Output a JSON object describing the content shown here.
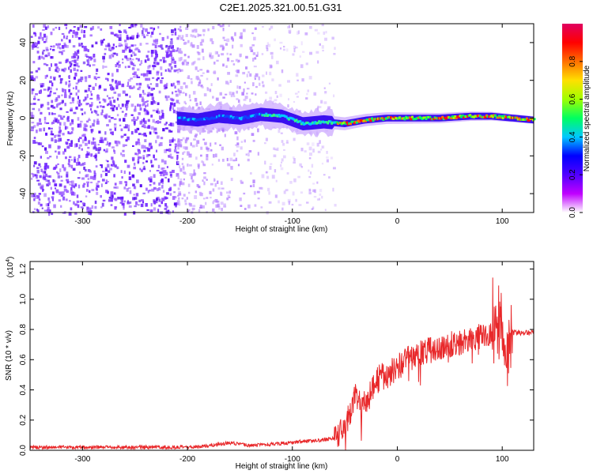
{
  "title": "C2E1.2025.321.00.51.G31",
  "chart_data": [
    {
      "type": "heatmap",
      "title": "C2E1.2025.321.00.51.G31",
      "xlabel": "Height of straight line (km)",
      "ylabel": "Frequency (Hz)",
      "xlim": [
        -350,
        130
      ],
      "ylim": [
        -50,
        50
      ],
      "xticks": [
        -300,
        -200,
        -100,
        0,
        100
      ],
      "xtick_labels": [
        "-300",
        "-200",
        "-100",
        "0",
        "100"
      ],
      "yticks": [
        -40,
        -20,
        0,
        20,
        40
      ],
      "ytick_labels": [
        "-40",
        "-20",
        "0",
        "20",
        "40"
      ],
      "colorbar": {
        "label": "Normalized spectral amplitude",
        "range": [
          0,
          1
        ],
        "ticks": [
          0,
          0.2,
          0.4,
          0.6,
          0.8
        ],
        "tick_labels": [
          "0.0",
          "0.2",
          "0.4",
          "0.6",
          "0.8"
        ],
        "colors": [
          "#ffffff",
          "#c000ff",
          "#5000ff",
          "#0000ff",
          "#00c8ff",
          "#00ff60",
          "#a0ff00",
          "#ffe000",
          "#ff7000",
          "#ff0000",
          "#e00060"
        ]
      },
      "trace_summary": {
        "noise_region_km": [
          -350,
          -210
        ],
        "transition_km": [
          -210,
          -60
        ],
        "stable_signal_km": [
          -60,
          130
        ],
        "center_frequency_hz": [
          [
            -210,
            0
          ],
          [
            -190,
            -1
          ],
          [
            -170,
            1
          ],
          [
            -150,
            0
          ],
          [
            -130,
            2
          ],
          [
            -110,
            1
          ],
          [
            -90,
            -3
          ],
          [
            -70,
            -2
          ],
          [
            -50,
            -3
          ],
          [
            -30,
            -1
          ],
          [
            -10,
            0
          ],
          [
            10,
            0
          ],
          [
            40,
            0
          ],
          [
            70,
            1
          ],
          [
            90,
            1
          ],
          [
            110,
            0
          ],
          [
            130,
            -1
          ]
        ]
      }
    },
    {
      "type": "line",
      "xlabel": "Height of straight line (km)",
      "ylabel": "SNR (10 * v/v)",
      "y_multiplier": "(x10",
      "y_multiplier_exp": "4",
      "y_multiplier_close": ")",
      "xlim": [
        -350,
        130
      ],
      "ylim": [
        0,
        1.25
      ],
      "xticks": [
        -300,
        -200,
        -100,
        0,
        100
      ],
      "xtick_labels": [
        "-300",
        "-200",
        "-100",
        "0",
        "100"
      ],
      "yticks": [
        0,
        0.2,
        0.4,
        0.6,
        0.8,
        1.0,
        1.2
      ],
      "ytick_labels": [
        "0.0",
        "0.2",
        "0.4",
        "0.6",
        "0.8",
        "1.0",
        "1.2"
      ],
      "line_color": "#e8282a",
      "series": [
        {
          "name": "SNR",
          "x": [
            -350,
            -300,
            -250,
            -200,
            -180,
            -160,
            -140,
            -120,
            -100,
            -90,
            -80,
            -70,
            -60,
            -50,
            -45,
            -40,
            -35,
            -30,
            -25,
            -20,
            -15,
            -10,
            -5,
            0,
            10,
            20,
            30,
            40,
            50,
            60,
            70,
            80,
            90,
            95,
            100,
            105,
            110,
            120,
            130
          ],
          "y": [
            0.02,
            0.02,
            0.02,
            0.02,
            0.03,
            0.05,
            0.03,
            0.04,
            0.05,
            0.06,
            0.06,
            0.07,
            0.08,
            0.15,
            0.25,
            0.35,
            0.3,
            0.33,
            0.4,
            0.45,
            0.5,
            0.48,
            0.52,
            0.55,
            0.6,
            0.63,
            0.66,
            0.68,
            0.7,
            0.72,
            0.74,
            0.75,
            0.76,
            0.8,
            0.85,
            0.6,
            0.78,
            0.78,
            0.78
          ]
        }
      ]
    }
  ]
}
